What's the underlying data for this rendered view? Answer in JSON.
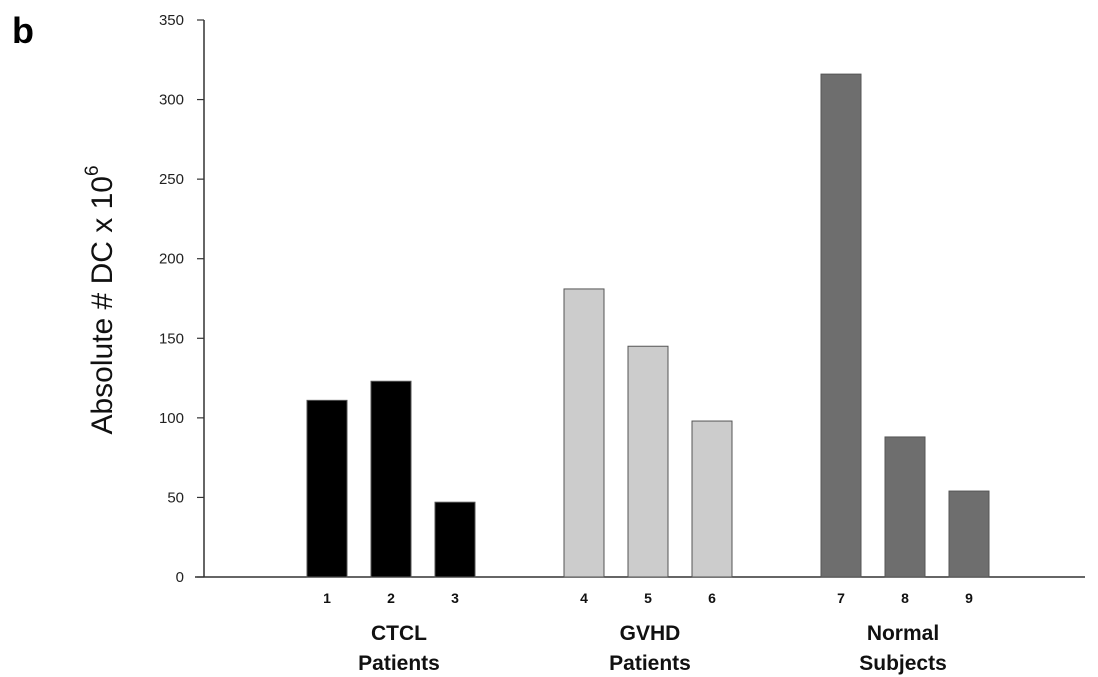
{
  "panel_label": "b",
  "chart_data": {
    "type": "bar",
    "title": "",
    "xlabel": "",
    "ylabel": "Absolute # DC x 10",
    "ylabel_superscript": "6",
    "ylim": [
      0,
      350
    ],
    "yticks": [
      0,
      50,
      100,
      150,
      200,
      250,
      300,
      350
    ],
    "grid": false,
    "categories": [
      "1",
      "2",
      "3",
      "4",
      "5",
      "6",
      "7",
      "8",
      "9"
    ],
    "values": [
      111,
      123,
      47,
      181,
      145,
      98,
      316,
      88,
      54
    ],
    "groups": [
      {
        "label_line1": "CTCL",
        "label_line2": "Patients",
        "color": "#000000",
        "indices": [
          0,
          1,
          2
        ]
      },
      {
        "label_line1": "GVHD",
        "label_line2": "Patients",
        "color": "#cccccc",
        "indices": [
          3,
          4,
          5
        ]
      },
      {
        "label_line1": "Normal",
        "label_line2": "Subjects",
        "color": "#6e6e6e",
        "indices": [
          6,
          7,
          8
        ]
      }
    ]
  }
}
